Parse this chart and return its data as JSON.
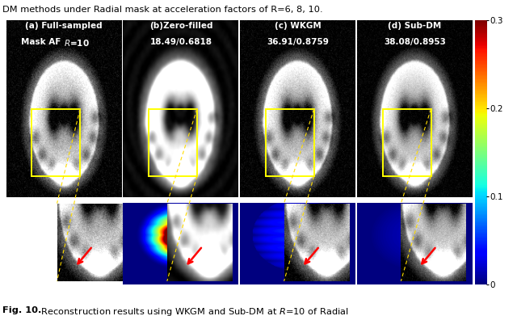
{
  "fig_width": 6.4,
  "fig_height": 3.91,
  "dpi": 100,
  "background_color": "#ffffff",
  "top_text": "DM methods under Radial mask at acceleration factors of R=6, 8, 10.",
  "panel_labels_line1": [
    "(a) Full-sampled",
    "(b)Zero-filled",
    "(c) WKGM",
    "(d) Sub-DM"
  ],
  "panel_labels_line2": [
    "Mask AF R=10",
    "18.49/0.6818",
    "36.91/0.8759",
    "38.08/0.8953"
  ],
  "colorbar_ticklabels": [
    "0",
    "0.1",
    "0.2",
    "0.3"
  ],
  "colorbar_tickvals": [
    0.0,
    0.1,
    0.2,
    0.3
  ],
  "caption_bold": "Fig. 10.",
  "caption_rest": " Reconstruction results using WKGM and Sub-DM at R=10 of Radial",
  "yellow": "#ffff00",
  "red": "#ff0000",
  "white": "#ffffff",
  "main_bg": "#0a0a0a"
}
